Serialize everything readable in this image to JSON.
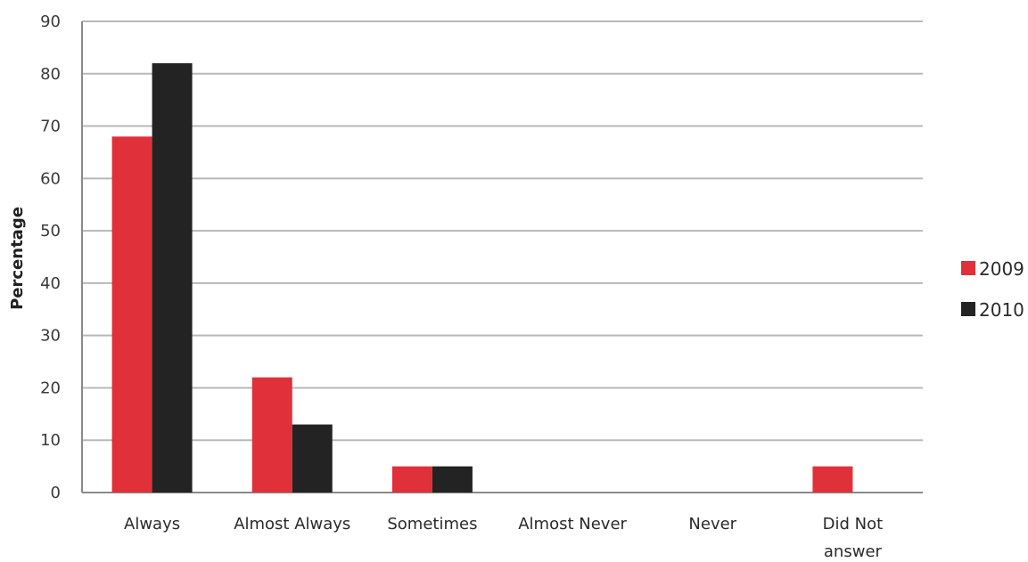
{
  "chart_data": {
    "type": "bar",
    "title": "",
    "xlabel": "",
    "ylabel": "Percentage",
    "ylim": [
      0,
      90
    ],
    "yticks": [
      0,
      10,
      20,
      30,
      40,
      50,
      60,
      70,
      80,
      90
    ],
    "grid": true,
    "legend_position": "right",
    "categories": [
      "Always",
      "Almost Always",
      "Sometimes",
      "Almost Never",
      "Never",
      "Did Not answer"
    ],
    "series": [
      {
        "name": "2009",
        "color": "#e0303a",
        "values": [
          68,
          22,
          5,
          0,
          0,
          5
        ]
      },
      {
        "name": "2010",
        "color": "#232323",
        "values": [
          82,
          13,
          5,
          0,
          0,
          0
        ]
      }
    ]
  }
}
